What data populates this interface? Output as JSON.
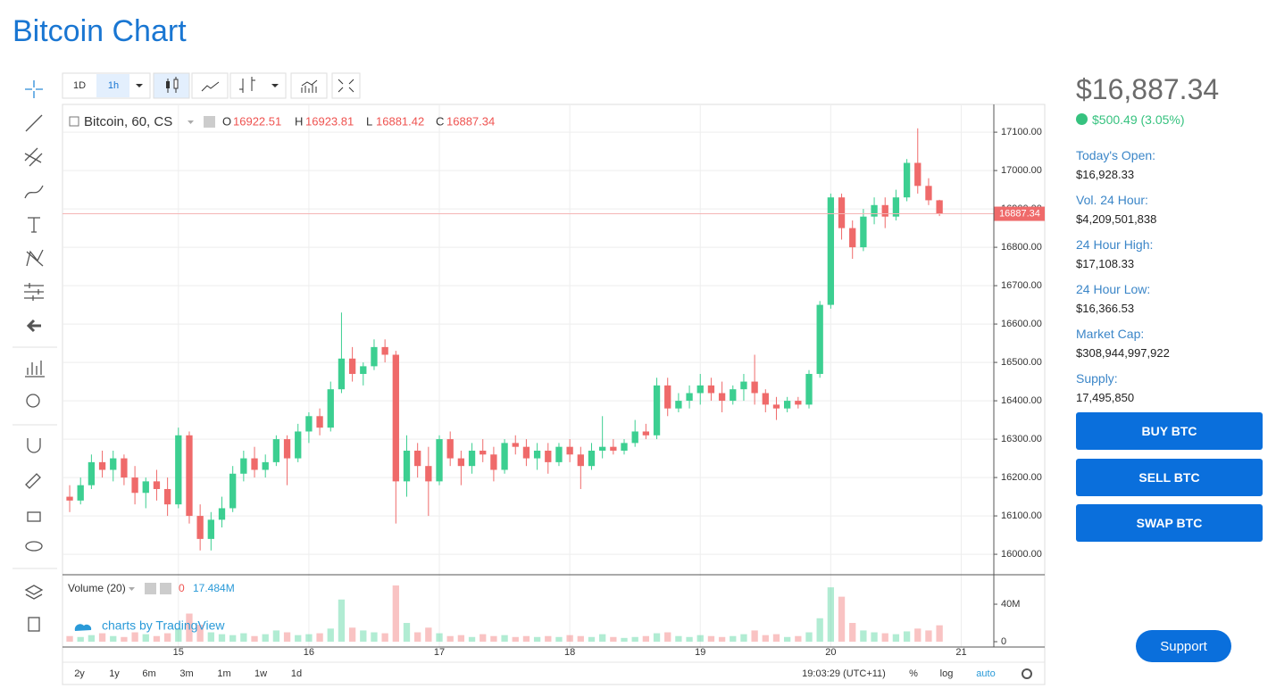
{
  "page_title": "Bitcoin Chart",
  "toolbar": {
    "intervals": [
      "1D",
      "1h"
    ]
  },
  "chart_data": {
    "type": "candlestick",
    "legend": {
      "symbol": "Bitcoin, 60, CS",
      "open_key": "O",
      "high_key": "H",
      "low_key": "L",
      "close_key": "C"
    },
    "up_color": "#3ccf91",
    "down_color": "#ef6a6a",
    "candles": [
      [
        16150,
        16180,
        16110,
        16140
      ],
      [
        16140,
        16200,
        16130,
        16180
      ],
      [
        16180,
        16260,
        16170,
        16240
      ],
      [
        16240,
        16270,
        16200,
        16220
      ],
      [
        16220,
        16270,
        16190,
        16250
      ],
      [
        16250,
        16260,
        16180,
        16200
      ],
      [
        16200,
        16230,
        16130,
        16160
      ],
      [
        16160,
        16200,
        16120,
        16190
      ],
      [
        16190,
        16220,
        16140,
        16170
      ],
      [
        16170,
        16200,
        16100,
        16130
      ],
      [
        16130,
        16330,
        16120,
        16310
      ],
      [
        16310,
        16320,
        16080,
        16100
      ],
      [
        16100,
        16130,
        16010,
        16040
      ],
      [
        16040,
        16110,
        16010,
        16090
      ],
      [
        16090,
        16150,
        16070,
        16120
      ],
      [
        16120,
        16230,
        16110,
        16210
      ],
      [
        16210,
        16270,
        16190,
        16250
      ],
      [
        16250,
        16280,
        16200,
        16220
      ],
      [
        16220,
        16260,
        16200,
        16240
      ],
      [
        16240,
        16310,
        16230,
        16300
      ],
      [
        16300,
        16310,
        16180,
        16250
      ],
      [
        16250,
        16340,
        16240,
        16320
      ],
      [
        16320,
        16370,
        16290,
        16360
      ],
      [
        16360,
        16380,
        16310,
        16330
      ],
      [
        16330,
        16450,
        16320,
        16430
      ],
      [
        16430,
        16630,
        16420,
        16510
      ],
      [
        16510,
        16540,
        16450,
        16470
      ],
      [
        16470,
        16500,
        16440,
        16490
      ],
      [
        16490,
        16560,
        16480,
        16540
      ],
      [
        16540,
        16560,
        16500,
        16520
      ],
      [
        16520,
        16530,
        16080,
        16190
      ],
      [
        16190,
        16310,
        16150,
        16270
      ],
      [
        16270,
        16290,
        16200,
        16230
      ],
      [
        16230,
        16280,
        16100,
        16190
      ],
      [
        16190,
        16310,
        16180,
        16300
      ],
      [
        16300,
        16320,
        16230,
        16250
      ],
      [
        16250,
        16270,
        16180,
        16230
      ],
      [
        16230,
        16290,
        16210,
        16270
      ],
      [
        16270,
        16300,
        16240,
        16260
      ],
      [
        16260,
        16280,
        16190,
        16220
      ],
      [
        16220,
        16300,
        16210,
        16290
      ],
      [
        16290,
        16310,
        16260,
        16280
      ],
      [
        16280,
        16300,
        16230,
        16250
      ],
      [
        16250,
        16290,
        16220,
        16270
      ],
      [
        16270,
        16290,
        16210,
        16240
      ],
      [
        16240,
        16290,
        16230,
        16280
      ],
      [
        16280,
        16300,
        16240,
        16260
      ],
      [
        16260,
        16280,
        16170,
        16230
      ],
      [
        16230,
        16290,
        16220,
        16270
      ],
      [
        16270,
        16360,
        16250,
        16280
      ],
      [
        16280,
        16300,
        16260,
        16270
      ],
      [
        16270,
        16300,
        16260,
        16290
      ],
      [
        16290,
        16350,
        16280,
        16320
      ],
      [
        16320,
        16340,
        16300,
        16310
      ],
      [
        16310,
        16460,
        16300,
        16440
      ],
      [
        16440,
        16460,
        16360,
        16380
      ],
      [
        16380,
        16420,
        16370,
        16400
      ],
      [
        16400,
        16440,
        16380,
        16420
      ],
      [
        16420,
        16470,
        16390,
        16440
      ],
      [
        16440,
        16460,
        16400,
        16420
      ],
      [
        16420,
        16450,
        16370,
        16400
      ],
      [
        16400,
        16440,
        16390,
        16430
      ],
      [
        16430,
        16470,
        16400,
        16450
      ],
      [
        16450,
        16520,
        16390,
        16420
      ],
      [
        16420,
        16430,
        16370,
        16390
      ],
      [
        16390,
        16410,
        16350,
        16380
      ],
      [
        16380,
        16410,
        16370,
        16400
      ],
      [
        16400,
        16410,
        16380,
        16390
      ],
      [
        16390,
        16480,
        16380,
        16470
      ],
      [
        16470,
        16660,
        16460,
        16650
      ],
      [
        16650,
        16940,
        16640,
        16930
      ],
      [
        16930,
        16940,
        16820,
        16850
      ],
      [
        16850,
        16870,
        16770,
        16800
      ],
      [
        16800,
        16900,
        16790,
        16880
      ],
      [
        16880,
        16930,
        16860,
        16910
      ],
      [
        16910,
        16930,
        16850,
        16880
      ],
      [
        16880,
        16950,
        16870,
        16930
      ],
      [
        16930,
        17030,
        16920,
        17020
      ],
      [
        17020,
        17110,
        16940,
        16960
      ],
      [
        16960,
        16980,
        16910,
        16922.51
      ],
      [
        16922.51,
        16923.81,
        16881.42,
        16887.34
      ]
    ],
    "xlim": [
      -0.66,
      85
    ],
    "xticks": [
      {
        "value": 10,
        "label": "15"
      },
      {
        "value": 22,
        "label": "16"
      },
      {
        "value": 34,
        "label": "17"
      },
      {
        "value": 46,
        "label": "18"
      },
      {
        "value": 58,
        "label": "19"
      },
      {
        "value": 70,
        "label": "20"
      },
      {
        "value": 82,
        "label": "21"
      }
    ],
    "ylim": [
      15949,
      17170
    ],
    "yticks": [
      {
        "value": 16000,
        "label": "16000.00"
      },
      {
        "value": 16100,
        "label": "16100.00"
      },
      {
        "value": 16200,
        "label": "16200.00"
      },
      {
        "value": 16300,
        "label": "16300.00"
      },
      {
        "value": 16400,
        "label": "16400.00"
      },
      {
        "value": 16500,
        "label": "16500.00"
      },
      {
        "value": 16600,
        "label": "16600.00"
      },
      {
        "value": 16700,
        "label": "16700.00"
      },
      {
        "value": 16800,
        "label": "16800.00"
      },
      {
        "value": 16900,
        "label": "16900.00"
      },
      {
        "value": 17000,
        "label": "17000.00"
      },
      {
        "value": 17100,
        "label": "17100.00"
      }
    ],
    "grid": true,
    "volume_title": "Volume (20)",
    "volume_zero": "0",
    "volume_current": {
      "value": 17.484,
      "label": "17.484M"
    },
    "volumes": [
      6,
      5,
      7,
      9,
      6,
      5,
      10,
      8,
      6,
      9,
      14,
      30,
      18,
      10,
      8,
      7,
      9,
      6,
      8,
      12,
      10,
      7,
      8,
      9,
      14,
      45,
      15,
      12,
      10,
      9,
      60,
      20,
      10,
      15,
      9,
      6,
      7,
      5,
      8,
      6,
      7,
      5,
      6,
      5,
      6,
      5,
      7,
      6,
      5,
      8,
      5,
      4,
      5,
      6,
      9,
      10,
      6,
      5,
      7,
      6,
      5,
      6,
      8,
      12,
      7,
      8,
      5,
      6,
      10,
      25,
      58,
      48,
      20,
      12,
      10,
      9,
      8,
      11,
      14,
      12,
      17.484
    ],
    "vlim": [
      -5.7,
      68.6
    ],
    "vticks": [
      {
        "value": 40,
        "label": "40M"
      },
      0
    ],
    "watermark": "charts by TradingView"
  },
  "bottom_bar": {
    "ranges": [
      "2y",
      "1y",
      "6m",
      "3m",
      "1m",
      "1w",
      "1d"
    ],
    "clock": "19:03:29 (UTC+11)",
    "options": [
      "%",
      "log",
      "auto"
    ]
  },
  "sidebar": {
    "price": "$16,887.34",
    "change": "$500.49 (3.05%)",
    "stats": [
      {
        "label": "Today's Open:",
        "value": "$16,928.33"
      },
      {
        "label": "Vol. 24 Hour:",
        "value": "$4,209,501,838"
      },
      {
        "label": "24 Hour High:",
        "value": "$17,108.33"
      },
      {
        "label": "24 Hour Low:",
        "value": "$16,366.53"
      },
      {
        "label": "Market Cap:",
        "value": "$308,944,997,922"
      },
      {
        "label": "Supply:",
        "value": "17,495,850"
      }
    ],
    "buttons": [
      "BUY BTC",
      "SELL BTC",
      "SWAP BTC"
    ],
    "support": "Support"
  }
}
